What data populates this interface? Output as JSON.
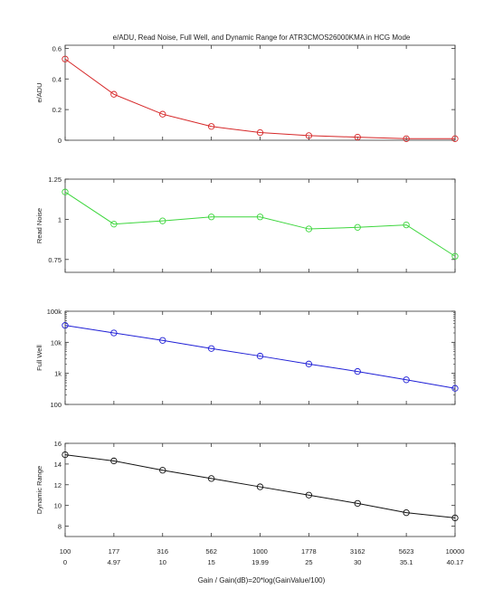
{
  "title": "e/ADU, Read Noise, Full Well, and Dynamic Range for ATR3CMOS26000KMA in HCG Mode",
  "x_categories": [
    "100",
    "177",
    "316",
    "562",
    "1000",
    "1778",
    "3162",
    "5623",
    "10000"
  ],
  "x_gain_db": [
    "0",
    "4.97",
    "10",
    "15",
    "19.99",
    "25",
    "30",
    "35.1",
    "40.17"
  ],
  "xlabel": "Gain / Gain(dB)=20*log(GainValue/100)",
  "chart_data": [
    {
      "type": "line",
      "ylabel": "e/ADU",
      "color": "#d62728",
      "yscale": "linear",
      "ylim": [
        0,
        0.62
      ],
      "yticks": [
        0,
        0.2,
        0.4,
        0.6
      ],
      "ytick_labels": [
        "0",
        "0.2",
        "0.4",
        "0.6"
      ],
      "values": [
        0.53,
        0.3,
        0.17,
        0.09,
        0.05,
        0.03,
        0.02,
        0.01,
        0.01
      ]
    },
    {
      "type": "line",
      "ylabel": "Read Noise",
      "color": "#3dd63d",
      "yscale": "linear",
      "ylim": [
        0.67,
        1.25
      ],
      "yticks": [
        0.75,
        1,
        1.25
      ],
      "ytick_labels": [
        "0.75",
        "1",
        "1.25"
      ],
      "values": [
        1.17,
        0.97,
        0.99,
        1.015,
        1.015,
        0.94,
        0.95,
        0.965,
        0.77
      ]
    },
    {
      "type": "line",
      "ylabel": "Full Well",
      "color": "#1f1fd6",
      "yscale": "log",
      "ylim": [
        100,
        100000
      ],
      "yticks": [
        100,
        1000,
        10000,
        100000
      ],
      "ytick_labels": [
        "100",
        "1k",
        "10k",
        "100k"
      ],
      "values": [
        35000,
        20000,
        11500,
        6300,
        3600,
        2000,
        1150,
        620,
        330
      ]
    },
    {
      "type": "line",
      "ylabel": "Dynamic Range",
      "color": "#111111",
      "yscale": "linear",
      "ylim": [
        7,
        16
      ],
      "yticks": [
        8,
        10,
        12,
        14,
        16
      ],
      "ytick_labels": [
        "8",
        "10",
        "12",
        "14",
        "16"
      ],
      "values": [
        14.9,
        14.3,
        13.4,
        12.6,
        11.8,
        11.0,
        10.2,
        9.3,
        8.8
      ]
    }
  ]
}
